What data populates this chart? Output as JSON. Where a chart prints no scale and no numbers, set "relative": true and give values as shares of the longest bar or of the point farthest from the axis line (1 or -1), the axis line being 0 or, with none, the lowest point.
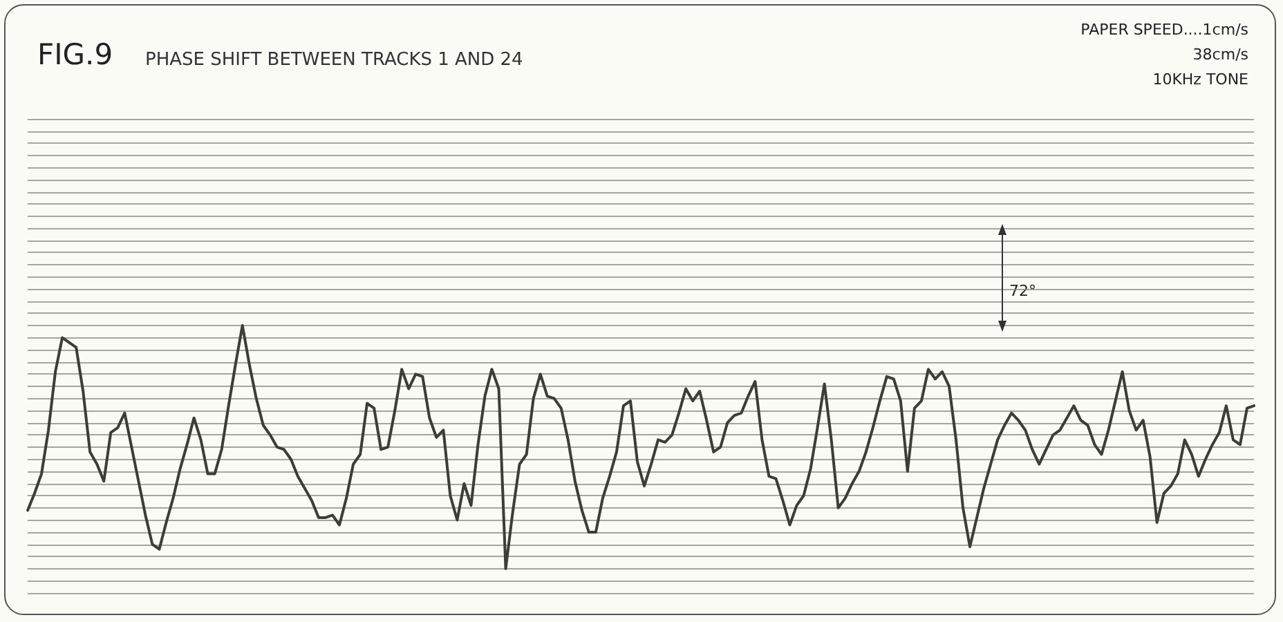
{
  "chart_data": {
    "type": "line",
    "title": "FIG.9",
    "subtitle": "PHASE SHIFT BETWEEN TRACKS 1 AND 24",
    "annotations": [
      "PAPER SPEED....1cm/s",
      "38cm/s",
      "10KHz TONE",
      "72°"
    ],
    "relative": true,
    "grid": "y",
    "line_style": "solid",
    "categories": [
      null,
      null,
      null,
      null,
      null,
      null,
      null,
      null,
      null,
      null,
      null,
      null,
      null,
      null,
      null,
      null,
      null,
      null,
      null,
      null,
      null,
      null,
      null,
      null,
      null,
      null,
      null,
      null,
      null,
      null,
      null,
      null,
      null,
      null,
      null,
      null,
      null,
      null,
      null,
      null,
      null,
      null,
      null,
      null,
      null,
      null,
      null,
      null,
      null,
      null,
      null,
      null,
      null,
      null,
      null,
      null,
      null,
      null,
      null,
      null,
      null,
      null,
      null,
      null,
      null,
      null,
      null,
      null,
      null,
      null,
      null,
      null,
      null,
      null,
      null,
      null,
      null,
      null,
      null,
      null,
      null,
      null,
      null,
      null,
      null,
      null,
      null,
      null,
      null,
      null,
      null,
      null,
      null,
      null,
      null,
      null,
      null,
      null,
      null,
      null,
      null,
      null,
      null,
      null,
      null,
      null,
      null,
      null,
      null,
      null,
      null,
      null,
      null,
      null,
      null,
      null,
      null,
      null,
      null,
      null,
      null,
      null,
      null,
      null,
      null,
      null,
      null,
      null,
      null,
      null,
      null,
      null,
      null,
      null,
      null,
      null,
      null,
      null,
      null,
      null,
      null,
      null,
      null,
      null,
      null,
      null,
      null,
      null,
      null,
      null,
      null,
      null,
      null,
      null,
      null,
      null,
      null,
      null,
      null,
      null,
      null,
      null,
      null,
      null,
      null,
      null,
      null,
      null,
      null,
      null,
      null,
      null,
      null,
      null,
      null,
      null,
      null,
      null
    ],
    "series": [
      {
        "color": "#3d3d38",
        "values": [
          0.24,
          0.31,
          0.39,
          0.57,
          0.81,
          0.95,
          0.93,
          0.91,
          0.73,
          0.48,
          0.43,
          0.36,
          0.56,
          0.58,
          0.64,
          0.5,
          0.36,
          0.22,
          0.1,
          0.08,
          0.19,
          0.29,
          0.41,
          0.51,
          0.62,
          0.53,
          0.39,
          0.39,
          0.49,
          0.67,
          0.84,
          1,
          0.84,
          0.7,
          0.59,
          0.55,
          0.5,
          0.49,
          0.45,
          0.38,
          0.33,
          0.28,
          0.21,
          0.21,
          0.22,
          0.18,
          0.29,
          0.43,
          0.47,
          0.68,
          0.66,
          0.49,
          0.5,
          0.65,
          0.82,
          0.74,
          0.8,
          0.79,
          0.62,
          0.54,
          0.57,
          0.3,
          0.2,
          0.35,
          0.26,
          0.51,
          0.71,
          0.82,
          0.74,
          0,
          0.23,
          0.43,
          0.47,
          0.7,
          0.8,
          0.71,
          0.7,
          0.66,
          0.53,
          0.36,
          0.24,
          0.15,
          0.15,
          0.29,
          0.38,
          0.48,
          0.67,
          0.69,
          0.44,
          0.34,
          0.43,
          0.53,
          0.52,
          0.55,
          0.64,
          0.74,
          0.69,
          0.73,
          0.61,
          0.48,
          0.5,
          0.6,
          0.63,
          0.64,
          0.71,
          0.77,
          0.53,
          0.38,
          0.37,
          0.28,
          0.18,
          0.26,
          0.3,
          0.41,
          0.58,
          0.76,
          0.53,
          0.25,
          0.29,
          0.35,
          0.4,
          0.48,
          0.58,
          0.69,
          0.79,
          0.78,
          0.69,
          0.4,
          0.66,
          0.69,
          0.82,
          0.78,
          0.81,
          0.75,
          0.53,
          0.25,
          0.09,
          0.21,
          0.33,
          0.43,
          0.53,
          0.59,
          0.64,
          0.61,
          0.57,
          0.49,
          0.43,
          0.49,
          0.55,
          0.57,
          0.62,
          0.67,
          0.61,
          0.59,
          0.51,
          0.47,
          0.57,
          0.69,
          0.81,
          0.65,
          0.57,
          0.61,
          0.46,
          0.19,
          0.31,
          0.34,
          0.39,
          0.53,
          0.47,
          0.38,
          0.45,
          0.51,
          0.56,
          0.67,
          0.53,
          0.51,
          0.66,
          0.67
        ]
      }
    ]
  }
}
